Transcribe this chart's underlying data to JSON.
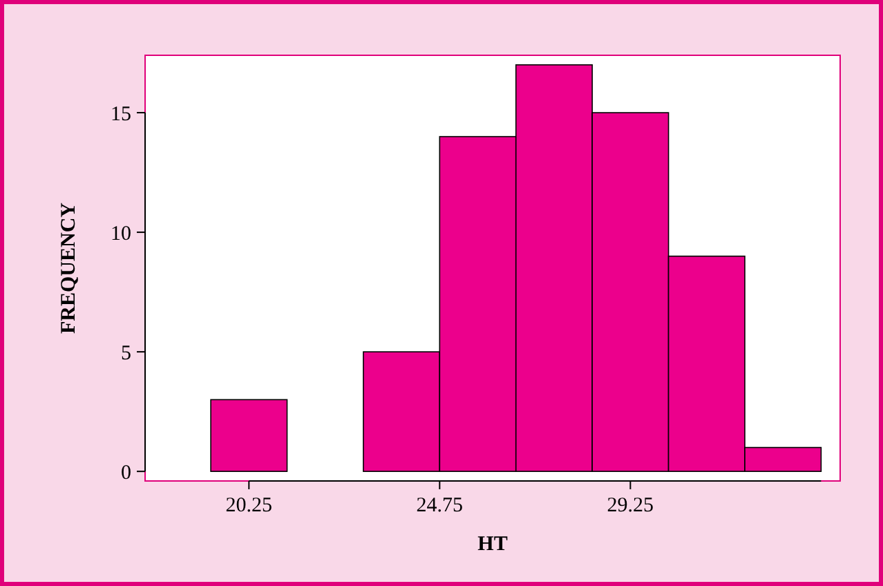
{
  "chart_data": {
    "type": "histogram",
    "xlabel": "HT",
    "ylabel": "FREQUENCY",
    "bins": [
      19.35,
      21.15,
      22.95,
      24.75,
      26.55,
      28.35,
      30.15,
      31.95,
      33.75
    ],
    "values": [
      3,
      0,
      5,
      14,
      17,
      15,
      9,
      1
    ],
    "color": "#ec008c",
    "xlim": [
      17.8,
      34.2
    ],
    "xticks": [
      20.25,
      24.75,
      29.25
    ],
    "ylim": [
      -0.4,
      17.4
    ],
    "yticks": [
      0,
      5,
      10,
      15
    ],
    "grid": false
  }
}
